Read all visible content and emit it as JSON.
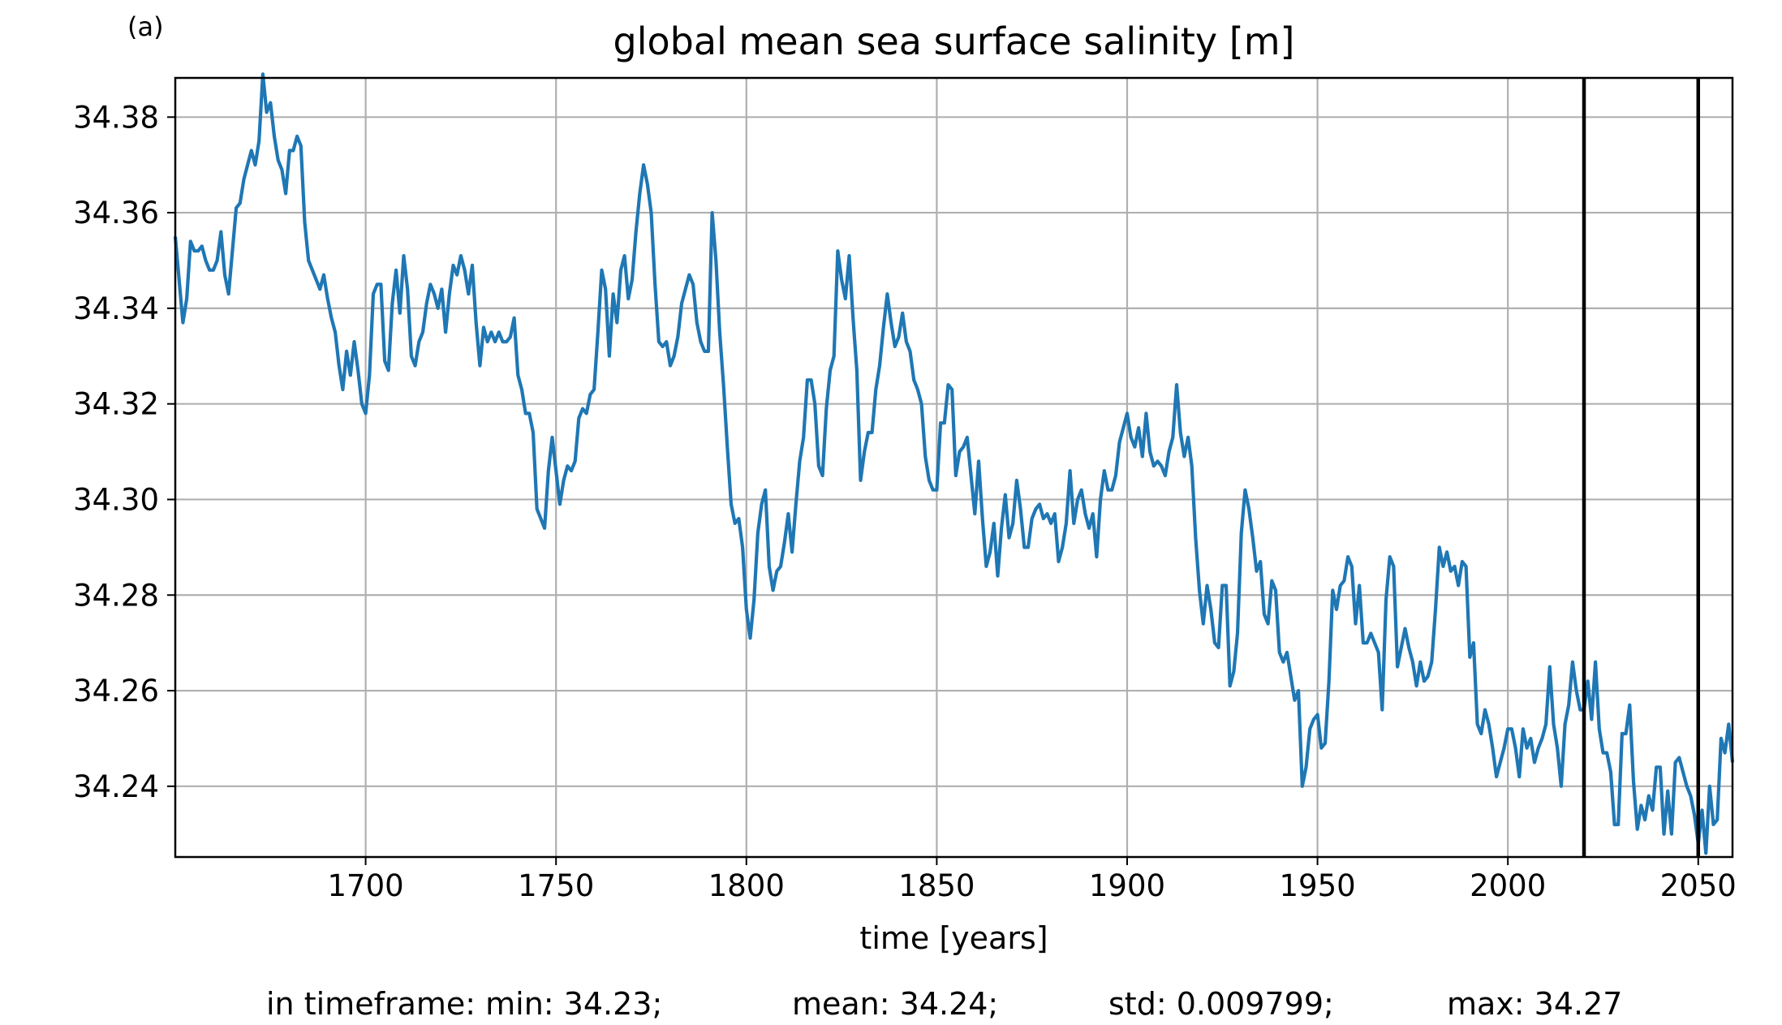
{
  "panel_label": "(a)",
  "stats": {
    "min": "in timeframe: min: 34.23;",
    "mean": "mean: 34.24;",
    "std": "std: 0.009799;",
    "max": "max: 34.27"
  },
  "colors": {
    "line": "#1f77b4",
    "grid": "#b0b0b0",
    "axes": "#000000",
    "marker": "#000000"
  },
  "chart_data": {
    "type": "line",
    "title": "global mean sea surface salinity [m]",
    "xlabel": "time [years]",
    "ylabel": "",
    "xlim": [
      1650,
      2059
    ],
    "ylim": [
      34.2252,
      34.3882
    ],
    "xticks": [
      1700,
      1750,
      1800,
      1850,
      1900,
      1950,
      2000,
      2050
    ],
    "yticks": [
      34.24,
      34.26,
      34.28,
      34.3,
      34.32,
      34.34,
      34.36,
      34.38
    ],
    "xtick_labels": [
      "1700",
      "1750",
      "1800",
      "1850",
      "1900",
      "1950",
      "2000",
      "2050"
    ],
    "ytick_labels": [
      "34.24",
      "34.26",
      "34.28",
      "34.30",
      "34.32",
      "34.34",
      "34.36",
      "34.38"
    ],
    "grid": true,
    "vertical_lines": [
      2020,
      2050
    ],
    "series": [
      {
        "x": [
          1650,
          1652,
          1653,
          1654,
          1655,
          1656,
          1657,
          1658,
          1659,
          1660,
          1661,
          1662,
          1663,
          1664,
          1665,
          1666,
          1667,
          1668,
          1669,
          1670,
          1671,
          1672,
          1673,
          1674,
          1675,
          1676,
          1677,
          1678,
          1679,
          1680,
          1681,
          1682,
          1683,
          1684,
          1685,
          1686,
          1687,
          1688,
          1689,
          1690,
          1691,
          1692,
          1693,
          1694,
          1695,
          1696,
          1697,
          1698,
          1699,
          1700,
          1701,
          1702,
          1703,
          1704,
          1705,
          1706,
          1707,
          1708,
          1709,
          1710,
          1711,
          1712,
          1713,
          1714,
          1715,
          1716,
          1717,
          1718,
          1719,
          1720,
          1721,
          1722,
          1723,
          1724,
          1725,
          1726,
          1727,
          1728,
          1729,
          1730,
          1731,
          1732,
          1733,
          1734,
          1735,
          1736,
          1737,
          1738,
          1739,
          1740,
          1741,
          1742,
          1743,
          1744,
          1745,
          1746,
          1747,
          1748,
          1749,
          1750,
          1751,
          1752,
          1753,
          1754,
          1755,
          1756,
          1757,
          1758,
          1759,
          1760,
          1761,
          1762,
          1763,
          1764,
          1765,
          1766,
          1767,
          1768,
          1769,
          1770,
          1771,
          1772,
          1773,
          1774,
          1775,
          1776,
          1777,
          1778,
          1779,
          1780,
          1781,
          1782,
          1783,
          1784,
          1785,
          1786,
          1787,
          1788,
          1789,
          1790,
          1791,
          1792,
          1793,
          1794,
          1795,
          1796,
          1797,
          1798,
          1799,
          1800,
          1801,
          1802,
          1803,
          1804,
          1805,
          1806,
          1807,
          1808,
          1809,
          1810,
          1811,
          1812,
          1813,
          1814,
          1815,
          1816,
          1817,
          1818,
          1819,
          1820,
          1821,
          1822,
          1823,
          1824,
          1825,
          1826,
          1827,
          1828,
          1829,
          1830,
          1831,
          1832,
          1833,
          1834,
          1835,
          1836,
          1837,
          1838,
          1839,
          1840,
          1841,
          1842,
          1843,
          1844,
          1845,
          1846,
          1847,
          1848,
          1849,
          1850,
          1851,
          1852,
          1853,
          1854,
          1855,
          1856,
          1857,
          1858,
          1859,
          1860,
          1861,
          1862,
          1863,
          1864,
          1865,
          1866,
          1867,
          1868,
          1869,
          1870,
          1871,
          1872,
          1873,
          1874,
          1875,
          1876,
          1877,
          1878,
          1879,
          1880,
          1881,
          1882,
          1883,
          1884,
          1885,
          1886,
          1887,
          1888,
          1889,
          1890,
          1891,
          1892,
          1893,
          1894,
          1895,
          1896,
          1897,
          1898,
          1899,
          1900,
          1901,
          1902,
          1903,
          1904,
          1905,
          1906,
          1907,
          1908,
          1909,
          1910,
          1911,
          1912,
          1913,
          1914,
          1915,
          1916,
          1917,
          1918,
          1919,
          1920,
          1921,
          1922,
          1923,
          1924,
          1925,
          1926,
          1927,
          1928,
          1929,
          1930,
          1931,
          1932,
          1933,
          1934,
          1935,
          1936,
          1937,
          1938,
          1939,
          1940,
          1941,
          1942,
          1943,
          1944,
          1945,
          1946,
          1947,
          1948,
          1949,
          1950,
          1951,
          1952,
          1953,
          1954,
          1955,
          1956,
          1957,
          1958,
          1959,
          1960,
          1961,
          1962,
          1963,
          1964,
          1965,
          1966,
          1967,
          1968,
          1969,
          1970,
          1971,
          1972,
          1973,
          1974,
          1975,
          1976,
          1977,
          1978,
          1979,
          1980,
          1981,
          1982,
          1983,
          1984,
          1985,
          1986,
          1987,
          1988,
          1989,
          1990,
          1991,
          1992,
          1993,
          1994,
          1995,
          1996,
          1997,
          1998,
          1999,
          2000,
          2001,
          2002,
          2003,
          2004,
          2005,
          2006,
          2007,
          2008,
          2009,
          2010,
          2011,
          2012,
          2013,
          2014,
          2015,
          2016,
          2017,
          2018,
          2019,
          2020,
          2021,
          2022,
          2023,
          2024,
          2025,
          2026,
          2027,
          2028,
          2029,
          2030,
          2031,
          2032,
          2033,
          2034,
          2035,
          2036,
          2037,
          2038,
          2039,
          2040,
          2041,
          2042,
          2043,
          2044,
          2045,
          2046,
          2047,
          2048,
          2049,
          2050,
          2051,
          2052,
          2053,
          2054,
          2055,
          2056,
          2057,
          2058,
          2059
        ],
        "values": [
          34.355,
          34.337,
          34.342,
          34.354,
          34.352,
          34.352,
          34.353,
          34.35,
          34.348,
          34.348,
          34.35,
          34.356,
          34.347,
          34.343,
          34.352,
          34.361,
          34.362,
          34.367,
          34.37,
          34.373,
          34.37,
          34.375,
          34.389,
          34.381,
          34.383,
          34.376,
          34.371,
          34.369,
          34.364,
          34.373,
          34.373,
          34.376,
          34.374,
          34.358,
          34.35,
          34.348,
          34.346,
          34.344,
          34.347,
          34.342,
          34.338,
          34.335,
          34.328,
          34.323,
          34.331,
          34.326,
          34.333,
          34.327,
          34.32,
          34.318,
          34.326,
          34.343,
          34.345,
          34.345,
          34.329,
          34.327,
          34.341,
          34.348,
          34.339,
          34.351,
          34.344,
          34.33,
          34.328,
          34.333,
          34.335,
          34.341,
          34.345,
          34.343,
          34.34,
          34.344,
          34.335,
          34.343,
          34.349,
          34.347,
          34.351,
          34.348,
          34.343,
          34.349,
          34.337,
          34.328,
          34.336,
          34.333,
          34.335,
          34.333,
          34.335,
          34.333,
          34.333,
          34.334,
          34.338,
          34.326,
          34.323,
          34.318,
          34.318,
          34.314,
          34.298,
          34.296,
          34.294,
          34.306,
          34.313,
          34.306,
          34.299,
          34.304,
          34.307,
          34.306,
          34.308,
          34.317,
          34.319,
          34.318,
          34.322,
          34.323,
          34.335,
          34.348,
          34.344,
          34.33,
          34.343,
          34.337,
          34.348,
          34.351,
          34.342,
          34.346,
          34.356,
          34.364,
          34.37,
          34.366,
          34.36,
          34.345,
          34.333,
          34.332,
          34.333,
          34.328,
          34.33,
          34.334,
          34.341,
          34.344,
          34.347,
          34.345,
          34.337,
          34.333,
          34.331,
          34.331,
          34.36,
          34.35,
          34.335,
          34.324,
          34.311,
          34.299,
          34.295,
          34.296,
          34.29,
          34.277,
          34.271,
          34.279,
          34.293,
          34.299,
          34.302,
          34.286,
          34.281,
          34.285,
          34.286,
          34.291,
          34.297,
          34.289,
          34.299,
          34.308,
          34.313,
          34.325,
          34.325,
          34.32,
          34.307,
          34.305,
          34.319,
          34.327,
          34.33,
          34.352,
          34.346,
          34.342,
          34.351,
          34.338,
          34.327,
          34.304,
          34.31,
          34.314,
          34.314,
          34.323,
          34.328,
          34.336,
          34.343,
          34.337,
          34.332,
          34.334,
          34.339,
          34.333,
          34.331,
          34.325,
          34.323,
          34.32,
          34.309,
          34.304,
          34.302,
          34.302,
          34.316,
          34.316,
          34.324,
          34.323,
          34.305,
          34.31,
          34.311,
          34.313,
          34.305,
          34.297,
          34.308,
          34.296,
          34.286,
          34.289,
          34.295,
          34.284,
          34.294,
          34.301,
          34.292,
          34.295,
          34.304,
          34.298,
          34.29,
          34.29,
          34.296,
          34.298,
          34.299,
          34.296,
          34.297,
          34.295,
          34.297,
          34.287,
          34.29,
          34.295,
          34.306,
          34.295,
          34.3,
          34.302,
          34.297,
          34.294,
          34.297,
          34.288,
          34.3,
          34.306,
          34.302,
          34.302,
          34.305,
          34.312,
          34.315,
          34.318,
          34.313,
          34.311,
          34.315,
          34.309,
          34.318,
          34.31,
          34.307,
          34.308,
          34.307,
          34.305,
          34.31,
          34.313,
          34.324,
          34.314,
          34.309,
          34.313,
          34.307,
          34.292,
          34.281,
          34.274,
          34.282,
          34.277,
          34.27,
          34.269,
          34.282,
          34.282,
          34.261,
          34.264,
          34.272,
          34.293,
          34.302,
          34.298,
          34.292,
          34.285,
          34.287,
          34.276,
          34.274,
          34.283,
          34.281,
          34.268,
          34.266,
          34.268,
          34.263,
          34.258,
          34.26,
          34.24,
          34.244,
          34.252,
          34.254,
          34.255,
          34.248,
          34.249,
          34.262,
          34.281,
          34.277,
          34.282,
          34.283,
          34.288,
          34.286,
          34.274,
          34.282,
          34.27,
          34.27,
          34.272,
          34.27,
          34.268,
          34.256,
          34.279,
          34.288,
          34.286,
          34.265,
          34.269,
          34.273,
          34.269,
          34.266,
          34.261,
          34.266,
          34.262,
          34.263,
          34.266,
          34.277,
          34.29,
          34.286,
          34.289,
          34.285,
          34.286,
          34.282,
          34.287,
          34.286,
          34.267,
          34.27,
          34.253,
          34.251,
          34.256,
          34.253,
          34.248,
          34.242,
          34.245,
          34.248,
          34.252,
          34.252,
          34.248,
          34.242,
          34.252,
          34.248,
          34.25,
          34.245,
          34.248,
          34.25,
          34.253,
          34.265,
          34.253,
          34.248,
          34.24,
          34.253,
          34.257,
          34.266,
          34.26,
          34.256,
          34.256,
          34.262,
          34.254,
          34.266,
          34.252,
          34.247,
          34.247,
          34.243,
          34.232,
          34.232,
          34.251,
          34.251,
          34.257,
          34.241,
          34.231,
          34.236,
          34.233,
          34.238,
          34.235,
          34.244,
          34.244,
          34.23,
          34.239,
          34.23,
          34.245,
          34.246,
          34.243,
          34.24,
          34.238,
          34.234,
          34.228,
          34.235,
          34.226,
          34.24,
          34.232,
          34.233,
          34.25,
          34.247,
          34.253,
          34.245
        ]
      }
    ]
  }
}
